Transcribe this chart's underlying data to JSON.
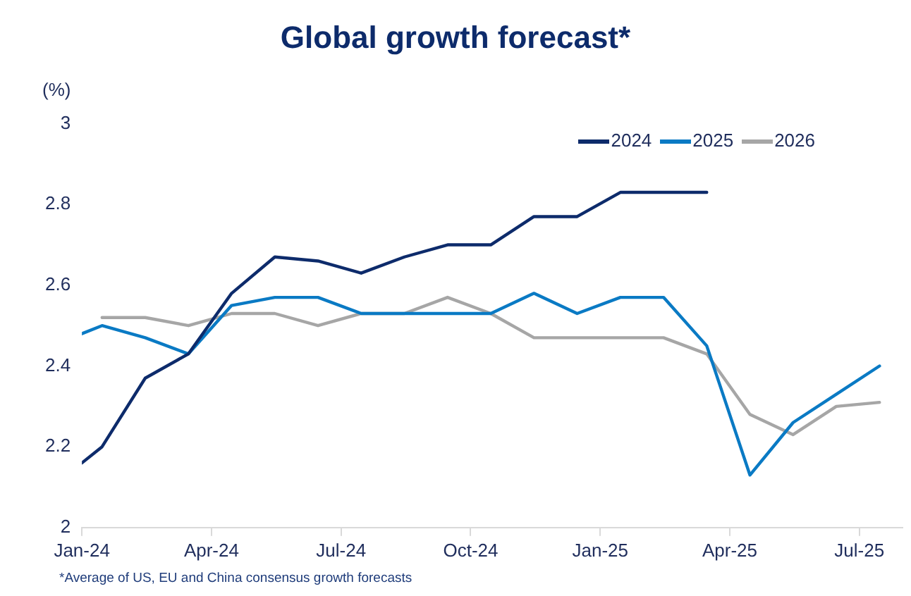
{
  "chart_data": {
    "type": "line",
    "title": "Global growth forecast*",
    "ylabel": "(%)",
    "annotations": [
      "*Average of US, EU and China consensus growth forecasts"
    ],
    "xlim": [
      "2024-01",
      "2025-08"
    ],
    "xticks": [
      {
        "value": "2024-01",
        "label": "Jan-24"
      },
      {
        "value": "2024-04",
        "label": "Apr-24"
      },
      {
        "value": "2024-07",
        "label": "Jul-24"
      },
      {
        "value": "2024-10",
        "label": "Oct-24"
      },
      {
        "value": "2025-01",
        "label": "Jan-25"
      },
      {
        "value": "2025-04",
        "label": "Apr-25"
      },
      {
        "value": "2025-07",
        "label": "Jul-25"
      }
    ],
    "ylim": [
      2,
      3
    ],
    "yticks": [
      2,
      2.2,
      2.4,
      2.6,
      2.8,
      3
    ],
    "grid": false,
    "legend": "top right",
    "marker": "none",
    "line_style": "solid",
    "series": [
      {
        "name": "2024",
        "color": "#0d2b6b",
        "x": [
          "2024-01-01",
          "2024-01-15",
          "2024-02-15",
          "2024-03-15",
          "2024-04-15",
          "2024-05-15",
          "2024-06-15",
          "2024-07-15",
          "2024-08-15",
          "2024-09-15",
          "2024-10-15",
          "2024-11-15",
          "2024-12-15",
          "2025-01-15",
          "2025-02-15",
          "2025-03-15"
        ],
        "values": [
          2.16,
          2.2,
          2.37,
          2.43,
          2.58,
          2.67,
          2.66,
          2.63,
          2.67,
          2.7,
          2.7,
          2.77,
          2.77,
          2.83,
          2.83,
          2.83
        ]
      },
      {
        "name": "2025",
        "color": "#0a7ac4",
        "x": [
          "2024-01-01",
          "2024-01-15",
          "2024-02-15",
          "2024-03-15",
          "2024-04-15",
          "2024-05-15",
          "2024-06-15",
          "2024-07-15",
          "2024-08-15",
          "2024-09-15",
          "2024-10-15",
          "2024-11-15",
          "2024-12-15",
          "2025-01-15",
          "2025-02-15",
          "2025-03-15",
          "2025-04-15",
          "2025-05-15",
          "2025-06-15",
          "2025-07-15"
        ],
        "values": [
          2.48,
          2.5,
          2.47,
          2.43,
          2.55,
          2.57,
          2.57,
          2.53,
          2.53,
          2.53,
          2.53,
          2.58,
          2.53,
          2.57,
          2.57,
          2.45,
          2.13,
          2.26,
          2.33,
          2.4
        ]
      },
      {
        "name": "2026",
        "color": "#a6a6a6",
        "x": [
          "2024-01-15",
          "2024-02-15",
          "2024-03-15",
          "2024-04-15",
          "2024-05-15",
          "2024-06-15",
          "2024-07-15",
          "2024-08-15",
          "2024-09-15",
          "2024-10-15",
          "2024-11-15",
          "2024-12-15",
          "2025-01-15",
          "2025-02-15",
          "2025-03-15",
          "2025-04-15",
          "2025-05-15",
          "2025-06-15",
          "2025-07-15"
        ],
        "values": [
          2.52,
          2.52,
          2.5,
          2.53,
          2.53,
          2.5,
          2.53,
          2.53,
          2.57,
          2.53,
          2.47,
          2.47,
          2.47,
          2.47,
          2.43,
          2.28,
          2.23,
          2.3,
          2.31
        ]
      }
    ]
  }
}
